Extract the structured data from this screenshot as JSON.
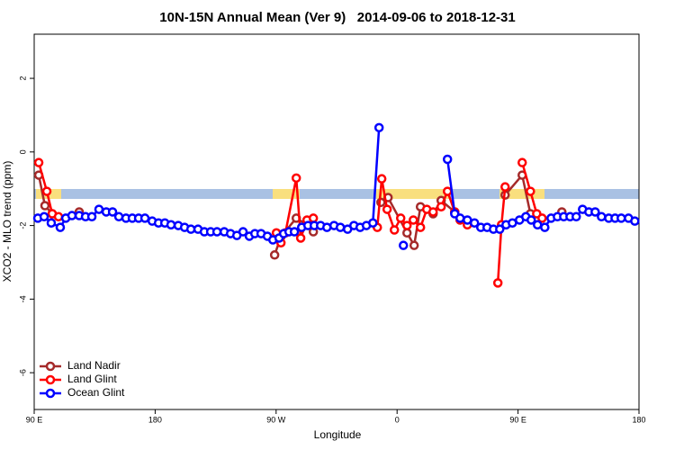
{
  "chart_data": {
    "type": "line",
    "title": "10N-15N Annual Mean (Ver 9)   2014-09-06 to 2018-12-31",
    "x_label": "Longitude",
    "y_label": "XCO2 - MLO trend (ppm)",
    "xlim": [
      90,
      540
    ],
    "ylim": [
      -7,
      3.2
    ],
    "xticks": [
      {
        "value": 90,
        "label": "90 E"
      },
      180,
      {
        "value": 270,
        "label": "90 W"
      },
      {
        "value": 360,
        "label": "0"
      },
      {
        "value": 450,
        "label": "90 E"
      },
      {
        "value": 540,
        "label": "180"
      }
    ],
    "yticks": [
      2,
      0,
      -2,
      -4,
      -6
    ],
    "legend": "bottom-left",
    "series": [
      {
        "name": "Land Nadir",
        "color": "#a52a2a",
        "x": [
          93.4,
          98.0,
          103.4,
          null,
          123.5,
          null,
          268.9,
          273.6,
          285.0,
          293.0,
          297.7,
          null,
          348.0,
          353.3,
          367.4,
          372.7,
          377.4,
          386.8,
          392.8,
          402.9,
          null,
          440.4,
          453.1,
          459.2,
          464.5,
          null,
          482.6
        ],
        "values": [
          -0.63,
          -1.46,
          -1.68,
          null,
          -1.63,
          null,
          -2.8,
          -2.3,
          -1.8,
          -1.98,
          -2.17,
          null,
          -1.37,
          -1.24,
          -2.2,
          -2.54,
          -1.49,
          -1.68,
          -1.32,
          -1.63,
          null,
          -1.17,
          -0.63,
          -1.68,
          -1.85,
          null,
          -1.63
        ]
      },
      {
        "name": "Land Glint",
        "color": "#ff0000",
        "x": [
          93.4,
          99.4,
          103.4,
          108.1,
          null,
          270.2,
          273.6,
          276.9,
          285.0,
          288.3,
          293.0,
          297.7,
          null,
          345.3,
          348.6,
          352.6,
          358.0,
          362.7,
          367.4,
          372.1,
          377.4,
          382.1,
          386.8,
          392.8,
          397.5,
          402.9,
          406.9,
          412.3,
          null,
          435.0,
          437.7,
          440.4,
          null,
          453.1,
          459.2,
          463.9,
          467.9
        ],
        "values": [
          -0.29,
          -1.07,
          -1.68,
          -1.76,
          null,
          -2.2,
          -2.47,
          -2.2,
          -0.71,
          -2.34,
          -1.85,
          -1.8,
          null,
          -2.05,
          -0.73,
          -1.56,
          -2.12,
          -1.8,
          -2.0,
          -1.85,
          -2.05,
          -1.56,
          -1.63,
          -1.49,
          -1.07,
          -1.63,
          -1.85,
          -1.98,
          null,
          -3.56,
          -1.98,
          -0.95,
          null,
          -0.29,
          -1.07,
          -1.68,
          -1.8
        ]
      },
      {
        "name": "Ocean Glint",
        "color": "#0000ff",
        "x": [
          92.7,
          97.4,
          102.7,
          109.4,
          113.5,
          118.1,
          123.5,
          128.2,
          132.9,
          138.2,
          143.6,
          148.3,
          153.0,
          158.3,
          163.0,
          167.7,
          172.4,
          177.8,
          182.5,
          187.2,
          191.8,
          197.2,
          201.9,
          206.6,
          211.9,
          216.6,
          221.3,
          226.0,
          231.4,
          236.1,
          240.8,
          245.4,
          250.1,
          254.2,
          258.8,
          263.5,
          267.6,
          272.2,
          275.6,
          279.6,
          283.6,
          289.0,
          293.7,
          298.4,
          303.1,
          307.8,
          313.1,
          317.8,
          323.2,
          327.9,
          332.5,
          337.2,
          342.0,
          346.6,
          null,
          364.7,
          null,
          397.5,
          402.9,
          406.9,
          412.3,
          417.6,
          422.3,
          427.0,
          431.7,
          436.4,
          441.1,
          445.8,
          451.1,
          455.8,
          459.8,
          464.5,
          469.9,
          474.6,
          479.3,
          484.0,
          488.7,
          493.3,
          498.0,
          502.7,
          507.4,
          512.1,
          517.5,
          522.2,
          526.8,
          532.2,
          536.9
        ],
        "values": [
          -1.8,
          -1.76,
          -1.93,
          -2.05,
          -1.8,
          -1.73,
          -1.73,
          -1.76,
          -1.76,
          -1.56,
          -1.63,
          -1.63,
          -1.76,
          -1.8,
          -1.8,
          -1.8,
          -1.8,
          -1.88,
          -1.93,
          -1.93,
          -1.98,
          -2.0,
          -2.05,
          -2.1,
          -2.1,
          -2.17,
          -2.17,
          -2.17,
          -2.17,
          -2.22,
          -2.27,
          -2.17,
          -2.29,
          -2.22,
          -2.22,
          -2.29,
          -2.39,
          -2.34,
          -2.22,
          -2.17,
          -2.17,
          -2.05,
          -2.0,
          -2.0,
          -2.0,
          -2.05,
          -2.0,
          -2.05,
          -2.1,
          -2.0,
          -2.05,
          -2.0,
          -1.93,
          0.66,
          null,
          -2.54,
          null,
          -0.2,
          -1.68,
          -1.8,
          -1.85,
          -1.93,
          -2.05,
          -2.05,
          -2.1,
          -2.1,
          -1.98,
          -1.93,
          -1.85,
          -1.76,
          -1.85,
          -1.98,
          -2.05,
          -1.8,
          -1.76,
          -1.76,
          -1.76,
          -1.76,
          -1.56,
          -1.63,
          -1.63,
          -1.76,
          -1.8,
          -1.8,
          -1.8,
          -1.8,
          -1.88
        ]
      }
    ]
  }
}
